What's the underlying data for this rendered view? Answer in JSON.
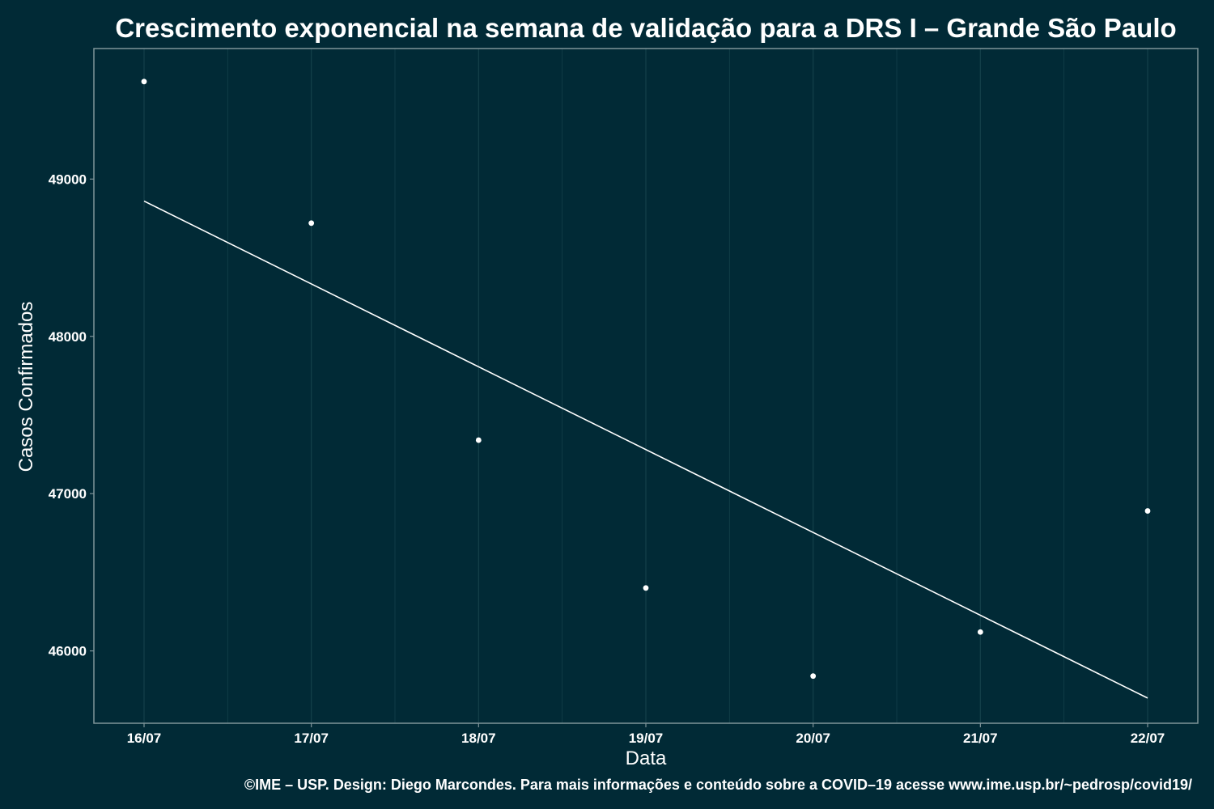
{
  "colors": {
    "background": "#012a36",
    "panel_border": "#7f9499",
    "grid": "#14404a",
    "points": "#ffffff",
    "fit_line": "#ffffff"
  },
  "chart_data": {
    "type": "scatter",
    "title": "Crescimento exponencial na semana de validação para a DRS I – Grande São Paulo",
    "xlabel": "Data",
    "ylabel": "Casos Confirmados",
    "caption": "©IME – USP. Design: Diego Marcondes. Para mais informações e conteúdo sobre a COVID–19 acesse www.ime.usp.br/~pedrosp/covid19/",
    "categories": [
      "16/07",
      "17/07",
      "18/07",
      "19/07",
      "20/07",
      "21/07",
      "22/07"
    ],
    "points": [
      49620,
      48720,
      47340,
      46400,
      45840,
      46120,
      46890
    ],
    "fit_line": {
      "start": 48860,
      "end": 45700
    },
    "ylim": [
      45540,
      49830
    ],
    "y_ticks": [
      46000,
      47000,
      48000,
      49000
    ],
    "grid": true
  }
}
